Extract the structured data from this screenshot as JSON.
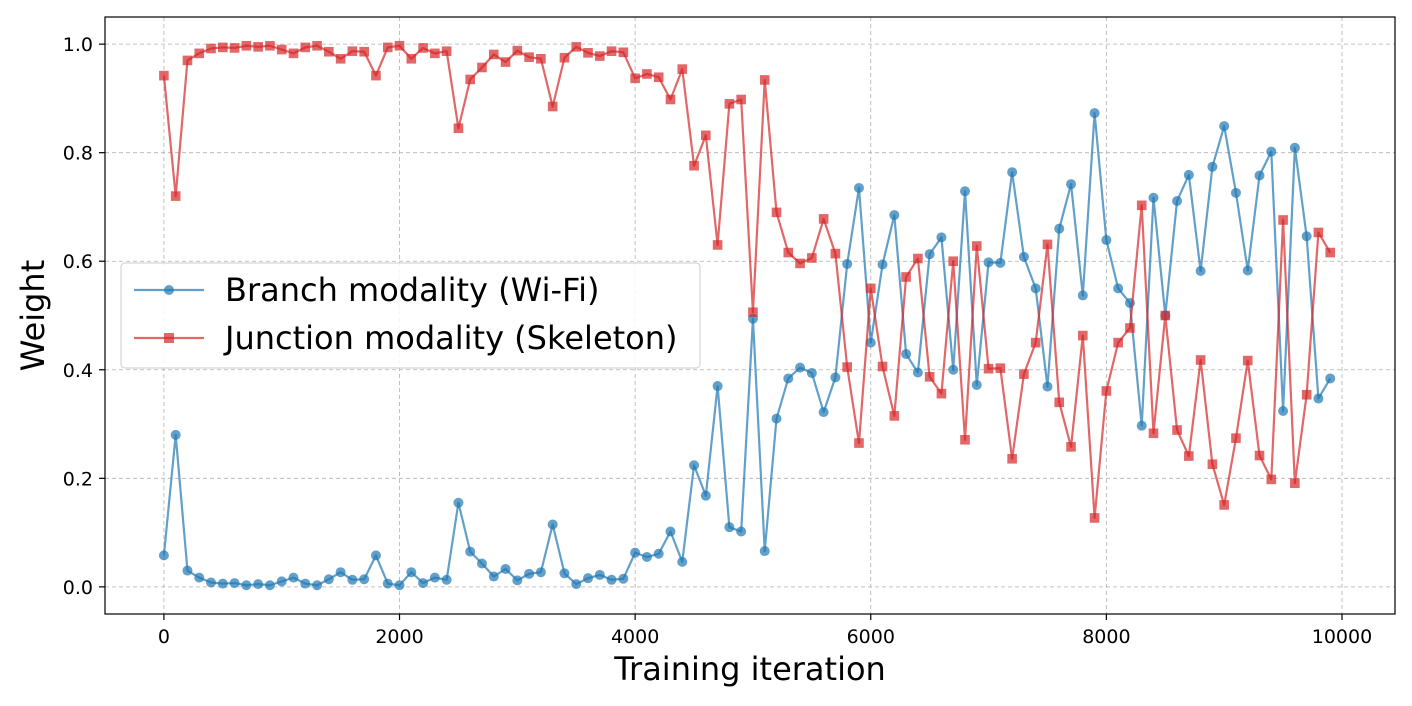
{
  "chart_data": {
    "type": "line",
    "xlabel": "Training iteration",
    "ylabel": "Weight",
    "xlim": [
      -500,
      10450
    ],
    "ylim": [
      -0.05,
      1.05
    ],
    "x_ticks": [
      0,
      2000,
      4000,
      6000,
      8000,
      10000
    ],
    "x_tick_labels": [
      "0",
      "2000",
      "4000",
      "6000",
      "8000",
      "10000"
    ],
    "y_ticks": [
      0.0,
      0.2,
      0.4,
      0.6,
      0.8,
      1.0
    ],
    "y_tick_labels": [
      "0.0",
      "0.2",
      "0.4",
      "0.6",
      "0.8",
      "1.0"
    ],
    "grid": true,
    "legend_position": "center-left",
    "x": [
      0,
      100,
      200,
      300,
      400,
      500,
      600,
      700,
      800,
      900,
      1000,
      1100,
      1200,
      1300,
      1400,
      1500,
      1600,
      1700,
      1800,
      1900,
      2000,
      2100,
      2200,
      2300,
      2400,
      2500,
      2600,
      2700,
      2800,
      2900,
      3000,
      3100,
      3200,
      3300,
      3400,
      3500,
      3600,
      3700,
      3800,
      3900,
      4000,
      4100,
      4200,
      4300,
      4400,
      4500,
      4600,
      4700,
      4800,
      4900,
      5000,
      5100,
      5200,
      5300,
      5400,
      5500,
      5600,
      5700,
      5800,
      5900,
      6000,
      6100,
      6200,
      6300,
      6400,
      6500,
      6600,
      6700,
      6800,
      6900,
      7000,
      7100,
      7200,
      7300,
      7400,
      7500,
      7600,
      7700,
      7800,
      7900,
      8000,
      8100,
      8200,
      8300,
      8400,
      8500,
      8600,
      8700,
      8800,
      8900,
      9000,
      9100,
      9200,
      9300,
      9400,
      9500,
      9600,
      9700,
      9800,
      9900
    ],
    "series": [
      {
        "name": "Branch modality (Wi-Fi)",
        "color": "#1f77b4",
        "marker": "circle",
        "values": [
          0.058,
          0.28,
          0.03,
          0.017,
          0.008,
          0.006,
          0.007,
          0.003,
          0.005,
          0.003,
          0.01,
          0.017,
          0.006,
          0.003,
          0.014,
          0.027,
          0.013,
          0.014,
          0.058,
          0.006,
          0.003,
          0.027,
          0.007,
          0.017,
          0.013,
          0.155,
          0.065,
          0.043,
          0.019,
          0.033,
          0.012,
          0.024,
          0.027,
          0.115,
          0.025,
          0.005,
          0.016,
          0.022,
          0.013,
          0.015,
          0.063,
          0.055,
          0.061,
          0.102,
          0.046,
          0.224,
          0.168,
          0.37,
          0.11,
          0.102,
          0.494,
          0.066,
          0.31,
          0.384,
          0.404,
          0.394,
          0.322,
          0.386,
          0.595,
          0.735,
          0.45,
          0.594,
          0.685,
          0.429,
          0.395,
          0.613,
          0.644,
          0.4,
          0.729,
          0.372,
          0.598,
          0.597,
          0.764,
          0.608,
          0.55,
          0.369,
          0.66,
          0.742,
          0.537,
          0.873,
          0.639,
          0.55,
          0.523,
          0.297,
          0.717,
          0.5,
          0.711,
          0.759,
          0.582,
          0.774,
          0.849,
          0.726,
          0.583,
          0.758,
          0.802,
          0.324,
          0.809,
          0.646,
          0.347,
          0.384
        ]
      },
      {
        "name": "Junction modality (Skeleton)",
        "color": "#d62728",
        "marker": "square",
        "values": [
          0.942,
          0.72,
          0.97,
          0.983,
          0.992,
          0.994,
          0.993,
          0.997,
          0.995,
          0.997,
          0.99,
          0.983,
          0.994,
          0.997,
          0.986,
          0.973,
          0.987,
          0.986,
          0.942,
          0.994,
          0.997,
          0.973,
          0.993,
          0.983,
          0.987,
          0.845,
          0.935,
          0.957,
          0.981,
          0.967,
          0.988,
          0.976,
          0.973,
          0.885,
          0.975,
          0.995,
          0.984,
          0.978,
          0.987,
          0.985,
          0.937,
          0.945,
          0.939,
          0.898,
          0.954,
          0.776,
          0.832,
          0.63,
          0.89,
          0.898,
          0.506,
          0.934,
          0.69,
          0.616,
          0.596,
          0.606,
          0.678,
          0.614,
          0.405,
          0.265,
          0.55,
          0.406,
          0.315,
          0.571,
          0.605,
          0.387,
          0.356,
          0.6,
          0.271,
          0.628,
          0.402,
          0.403,
          0.236,
          0.392,
          0.45,
          0.631,
          0.34,
          0.258,
          0.463,
          0.127,
          0.361,
          0.45,
          0.477,
          0.703,
          0.283,
          0.5,
          0.289,
          0.241,
          0.418,
          0.226,
          0.151,
          0.274,
          0.417,
          0.242,
          0.198,
          0.676,
          0.191,
          0.354,
          0.653,
          0.616
        ]
      }
    ]
  }
}
